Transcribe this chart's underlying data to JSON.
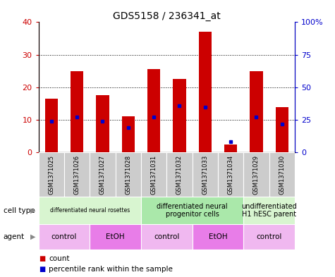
{
  "title": "GDS5158 / 236341_at",
  "samples": [
    "GSM1371025",
    "GSM1371026",
    "GSM1371027",
    "GSM1371028",
    "GSM1371031",
    "GSM1371032",
    "GSM1371033",
    "GSM1371034",
    "GSM1371029",
    "GSM1371030"
  ],
  "counts": [
    16.5,
    25.0,
    17.5,
    11.0,
    25.5,
    22.5,
    37.0,
    2.5,
    25.0,
    14.0
  ],
  "percentiles": [
    24,
    27,
    24,
    19,
    27,
    36,
    35,
    8,
    27,
    22
  ],
  "ylim_left": [
    0,
    40
  ],
  "ylim_right": [
    0,
    100
  ],
  "yticks_left": [
    0,
    10,
    20,
    30,
    40
  ],
  "yticks_right": [
    0,
    25,
    50,
    75,
    100
  ],
  "ytick_labels_right": [
    "0",
    "25",
    "50",
    "75",
    "100%"
  ],
  "bar_color": "#cc0000",
  "percentile_color": "#0000cc",
  "cell_type_groups": [
    {
      "label": "differentiated neural rosettes",
      "start": 0,
      "end": 4,
      "color": "#d8f5d0"
    },
    {
      "label": "differentiated neural\nprogenitor cells",
      "start": 4,
      "end": 8,
      "color": "#aae8aa"
    },
    {
      "label": "undifferentiated\nH1 hESC parent",
      "start": 8,
      "end": 10,
      "color": "#d8f5d0"
    }
  ],
  "agent_groups": [
    {
      "label": "control",
      "start": 0,
      "end": 2,
      "color": "#f0b8f0"
    },
    {
      "label": "EtOH",
      "start": 2,
      "end": 4,
      "color": "#e87de8"
    },
    {
      "label": "control",
      "start": 4,
      "end": 6,
      "color": "#f0b8f0"
    },
    {
      "label": "EtOH",
      "start": 6,
      "end": 8,
      "color": "#e87de8"
    },
    {
      "label": "control",
      "start": 8,
      "end": 10,
      "color": "#f0b8f0"
    }
  ],
  "legend_count_color": "#cc0000",
  "legend_percentile_color": "#0000cc",
  "bar_width": 0.5,
  "xlabel_color": "#cc0000",
  "ylabel_right_color": "#0000cc"
}
